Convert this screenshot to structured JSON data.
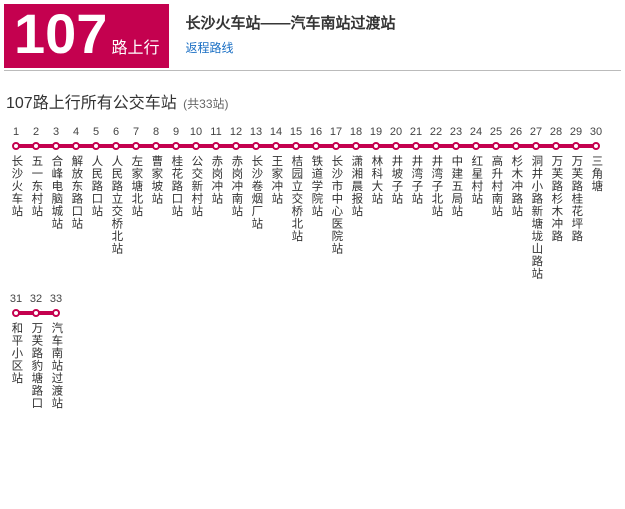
{
  "header": {
    "route_number": "107",
    "route_suffix": "路上行",
    "route_title": "长沙火车站——汽车南站过渡站",
    "return_link": "返程路线"
  },
  "section": {
    "title": "107路上行所有公交车站",
    "count_label": "(共33站)"
  },
  "style": {
    "accent": "#c4014f",
    "link_color": "#1a6fc4",
    "stop_col_width": 20,
    "node_size": 8,
    "track_height": 4
  },
  "rows_of": 30,
  "stops": [
    "长沙火车站",
    "五一东村站",
    "合峰电脑城站",
    "解放东路口站",
    "人民路口站",
    "人民路立交桥北站",
    "左家塘北站",
    "曹家坡站",
    "桂花路口站",
    "公交新村站",
    "赤岗冲站",
    "赤岗冲南站",
    "长沙卷烟厂站",
    "王家冲站",
    "桔园立交桥北站",
    "铁道学院站",
    "长沙市中心医院站",
    "潇湘晨报站",
    "林科大站",
    "井坡子站",
    "井湾子站",
    "井湾子北站",
    "中建五局站",
    "红星村站",
    "高升村南站",
    "杉木冲路站",
    "洞井小路新塘垅山路站",
    "万芙路杉木冲路",
    "万芙路桂花坪路",
    "三角塘",
    "和平小区站",
    "万芙路豹塘路口",
    "汽车南站过渡站"
  ]
}
